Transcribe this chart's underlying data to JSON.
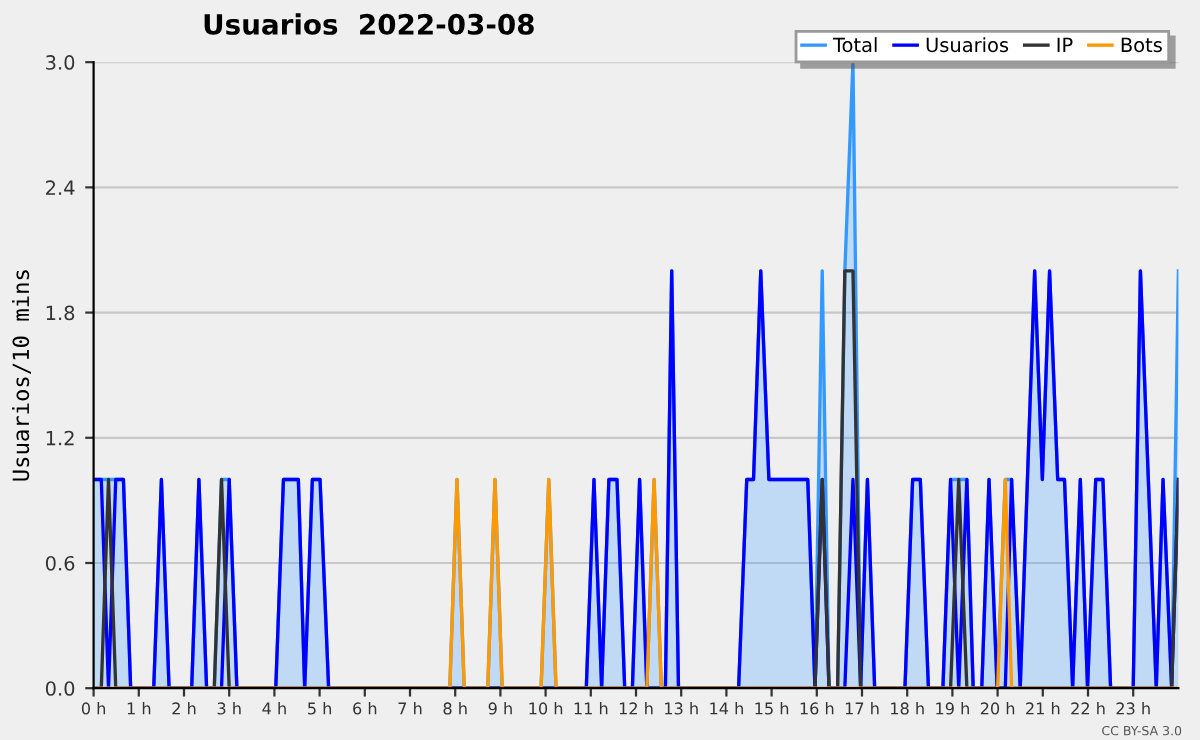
{
  "chart_data": {
    "type": "line",
    "title": "Usuarios  2022-03-08",
    "ylabel": "Usuarios/10 mins",
    "annotations": [
      "CC BY-SA 3.0"
    ],
    "xlim": [
      0,
      24
    ],
    "ylim": [
      0,
      3.0
    ],
    "xticks": [
      {
        "value": 0,
        "label": "0 h"
      },
      {
        "value": 1,
        "label": "1 h"
      },
      {
        "value": 2,
        "label": "2 h"
      },
      {
        "value": 3,
        "label": "3 h"
      },
      {
        "value": 4,
        "label": "4 h"
      },
      {
        "value": 5,
        "label": "5 h"
      },
      {
        "value": 6,
        "label": "6 h"
      },
      {
        "value": 7,
        "label": "7 h"
      },
      {
        "value": 8,
        "label": "8 h"
      },
      {
        "value": 9,
        "label": "9 h"
      },
      {
        "value": 10,
        "label": "10 h"
      },
      {
        "value": 11,
        "label": "11 h"
      },
      {
        "value": 12,
        "label": "12 h"
      },
      {
        "value": 13,
        "label": "13 h"
      },
      {
        "value": 14,
        "label": "14 h"
      },
      {
        "value": 15,
        "label": "15 h"
      },
      {
        "value": 16,
        "label": "16 h"
      },
      {
        "value": 17,
        "label": "17 h"
      },
      {
        "value": 18,
        "label": "18 h"
      },
      {
        "value": 19,
        "label": "19 h"
      },
      {
        "value": 20,
        "label": "20 h"
      },
      {
        "value": 21,
        "label": "21 h"
      },
      {
        "value": 22,
        "label": "22 h"
      },
      {
        "value": 23,
        "label": "23 h"
      }
    ],
    "yticks": [
      {
        "value": 0,
        "label": "0.0"
      },
      {
        "value": 0.6,
        "label": "0.6"
      },
      {
        "value": 1.2,
        "label": "1.2"
      },
      {
        "value": 1.8,
        "label": "1.8"
      },
      {
        "value": 2.4,
        "label": "2.4"
      },
      {
        "value": 3.0,
        "label": "3.0"
      }
    ],
    "grid": "y",
    "legend": "top right",
    "marker": "none",
    "line_style": "solid",
    "series": [
      {
        "name": "Total",
        "type": "area",
        "color": "#3399ff",
        "x": [
          0,
          0.66,
          0.82,
          1.33,
          1.5,
          1.67,
          2.17,
          2.33,
          2.5,
          2.67,
          2.83,
          3.0,
          3.17,
          4.03,
          4.2,
          4.53,
          4.67,
          4.84,
          5.01,
          5.2,
          7.88,
          8.04,
          8.2,
          8.72,
          8.88,
          9.04,
          9.9,
          10.07,
          10.23,
          10.9,
          11.07,
          11.24,
          11.4,
          11.58,
          11.75,
          11.92,
          12.08,
          12.24,
          12.4,
          12.56,
          12.65,
          12.79,
          12.94,
          14.27,
          14.45,
          14.6,
          14.76,
          14.94,
          15.8,
          15.96,
          16.12,
          16.27,
          16.46,
          16.62,
          16.8,
          16.97,
          17.12,
          17.28,
          17.95,
          18.12,
          18.29,
          18.47,
          18.79,
          18.96,
          19.32,
          19.46,
          19.65,
          19.81,
          19.99,
          20.17,
          20.31,
          20.5,
          20.82,
          20.99,
          21.15,
          21.33,
          21.48,
          21.66,
          21.83,
          21.99,
          22.17,
          22.33,
          22.5,
          23.0,
          23.16,
          23.51,
          23.66,
          23.85,
          24.0
        ],
        "values": [
          1,
          1,
          0,
          0,
          1,
          0,
          0,
          1,
          0,
          0,
          1,
          1,
          0,
          0,
          1,
          1,
          0,
          1,
          1,
          0,
          0,
          1,
          0,
          0,
          1,
          0,
          0,
          1,
          0,
          0,
          1,
          0,
          1,
          1,
          0,
          0,
          1,
          0,
          1,
          0,
          0,
          2,
          0,
          0,
          1,
          1,
          2,
          1,
          1,
          0,
          2,
          0,
          0,
          2,
          3,
          0,
          1,
          0,
          0,
          1,
          1,
          0,
          0,
          1,
          1,
          0,
          0,
          1,
          0,
          1,
          1,
          0,
          2,
          1,
          2,
          1,
          1,
          0,
          1,
          0,
          1,
          1,
          0,
          0,
          2,
          0,
          1,
          0,
          2
        ]
      },
      {
        "name": "Usuarios",
        "color": "#0000ff",
        "x": [
          0,
          0.17,
          0.33,
          0.49,
          0.66,
          0.82,
          1.33,
          1.5,
          1.67,
          2.17,
          2.33,
          2.5,
          2.83,
          3.0,
          3.17,
          4.03,
          4.2,
          4.53,
          4.67,
          4.84,
          5.01,
          5.2,
          10.9,
          11.07,
          11.24,
          11.4,
          11.58,
          11.75,
          11.92,
          12.08,
          12.24,
          12.65,
          12.79,
          12.94,
          14.27,
          14.45,
          14.6,
          14.76,
          14.94,
          15.8,
          15.96,
          16.12,
          16.27,
          16.62,
          16.8,
          16.97,
          17.12,
          17.28,
          17.95,
          18.12,
          18.29,
          18.47,
          18.79,
          18.96,
          19.14,
          19.32,
          19.46,
          19.65,
          19.81,
          19.99,
          20.17,
          20.31,
          20.5,
          20.82,
          20.99,
          21.15,
          21.33,
          21.48,
          21.66,
          21.83,
          21.99,
          22.17,
          22.33,
          22.5,
          23.0,
          23.16,
          23.51,
          23.66,
          23.85,
          24.0
        ],
        "values": [
          1,
          1,
          0,
          1,
          1,
          0,
          0,
          1,
          0,
          0,
          1,
          0,
          0,
          1,
          0,
          0,
          1,
          1,
          0,
          1,
          1,
          0,
          0,
          1,
          0,
          1,
          1,
          0,
          0,
          1,
          0,
          0,
          2,
          0,
          0,
          1,
          1,
          2,
          1,
          1,
          0,
          1,
          0,
          0,
          1,
          0,
          1,
          0,
          0,
          1,
          1,
          0,
          0,
          1,
          0,
          1,
          0,
          0,
          1,
          0,
          0,
          1,
          0,
          2,
          1,
          2,
          1,
          1,
          0,
          1,
          0,
          1,
          1,
          0,
          0,
          2,
          0,
          1,
          0,
          1
        ]
      },
      {
        "name": "IP",
        "color": "#333333",
        "x": [
          0,
          0.17,
          0.33,
          0.49,
          2.67,
          2.83,
          3.0,
          15.96,
          16.12,
          16.27,
          16.46,
          16.62,
          16.8,
          16.97,
          18.96,
          19.14,
          19.32,
          23.85,
          24.0
        ],
        "values": [
          0,
          0,
          1,
          0,
          0,
          1,
          0,
          0,
          1,
          0,
          0,
          2,
          2,
          0,
          0,
          1,
          0,
          0,
          1
        ]
      },
      {
        "name": "Bots",
        "color": "#ff9900",
        "x": [
          0,
          7.88,
          8.04,
          8.2,
          8.72,
          8.88,
          9.04,
          9.9,
          10.07,
          10.23,
          12.24,
          12.4,
          12.56,
          20.0,
          20.17,
          20.31,
          24
        ],
        "values": [
          0,
          0,
          1,
          0,
          0,
          1,
          0,
          0,
          1,
          0,
          0,
          1,
          0,
          0,
          1,
          0,
          0
        ]
      }
    ]
  }
}
